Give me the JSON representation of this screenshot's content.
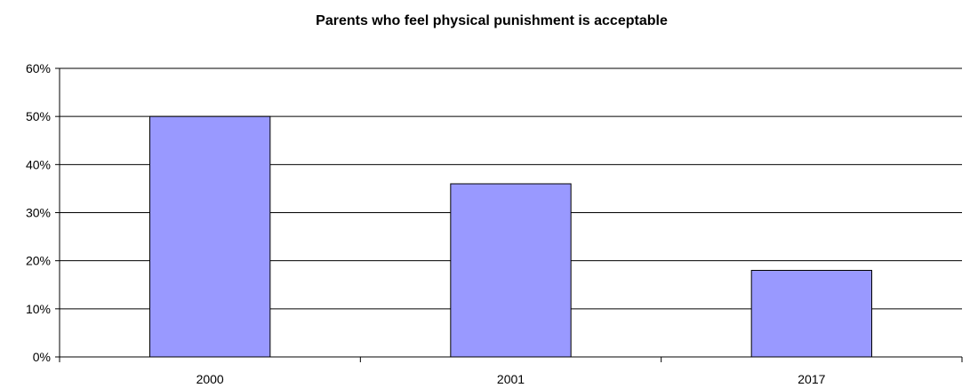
{
  "chart_data": {
    "type": "bar",
    "title": "Parents who feel physical punishment is acceptable",
    "xlabel": "",
    "ylabel": "",
    "categories": [
      "2000",
      "2001",
      "2017"
    ],
    "values": [
      0.5,
      0.36,
      0.18
    ],
    "ylim": [
      0,
      0.6
    ],
    "yticks": [
      {
        "value": 0.0,
        "label": "0%"
      },
      {
        "value": 0.1,
        "label": "10%"
      },
      {
        "value": 0.2,
        "label": "20%"
      },
      {
        "value": 0.3,
        "label": "30%"
      },
      {
        "value": 0.4,
        "label": "40%"
      },
      {
        "value": 0.5,
        "label": "50%"
      },
      {
        "value": 0.6,
        "label": "60%"
      }
    ],
    "grid": true,
    "legend": "none",
    "bar_color": "#9999FF",
    "bar_edge_color": "#000000"
  }
}
